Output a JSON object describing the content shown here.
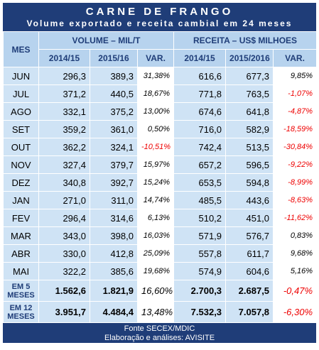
{
  "header": {
    "title": "CARNE DE FRANGO",
    "subtitle": "Volume exportado e receita cambial em 24 meses"
  },
  "table": {
    "month_header": "MES",
    "group_headers": [
      "VOLUME – MIL/T",
      "RECEITA – US$ MILHOES"
    ],
    "column_headers": [
      "2014/15",
      "2015/16",
      "VAR.",
      "2014/15",
      "2015/2016",
      "VAR."
    ],
    "rows": [
      [
        "JUN",
        "296,3",
        "389,3",
        "31,38%",
        "616,6",
        "677,3",
        "9,85%"
      ],
      [
        "JUL",
        "371,2",
        "440,5",
        "18,67%",
        "771,8",
        "763,5",
        "-1,07%"
      ],
      [
        "AGO",
        "332,1",
        "375,2",
        "13,00%",
        "674,6",
        "641,8",
        "-4,87%"
      ],
      [
        "SET",
        "359,2",
        "361,0",
        "0,50%",
        "716,0",
        "582,9",
        "-18,59%"
      ],
      [
        "OUT",
        "362,2",
        "324,1",
        "-10,51%",
        "742,4",
        "513,5",
        "-30,84%"
      ],
      [
        "NOV",
        "327,4",
        "379,7",
        "15,97%",
        "657,2",
        "596,5",
        "-9,22%"
      ],
      [
        "DEZ",
        "340,8",
        "392,7",
        "15,24%",
        "653,5",
        "594,8",
        "-8,99%"
      ],
      [
        "JAN",
        "271,0",
        "311,0",
        "14,74%",
        "485,5",
        "443,6",
        "-8,63%"
      ],
      [
        "FEV",
        "296,4",
        "314,6",
        "6,13%",
        "510,2",
        "451,0",
        "-11,62%"
      ],
      [
        "MAR",
        "343,0",
        "398,0",
        "16,03%",
        "571,9",
        "576,7",
        "0,83%"
      ],
      [
        "ABR",
        "330,0",
        "412,8",
        "25,09%",
        "557,8",
        "611,7",
        "9,68%"
      ],
      [
        "MAI",
        "322,2",
        "385,6",
        "19,68%",
        "574,9",
        "604,6",
        "5,16%"
      ]
    ],
    "totals": [
      [
        "EM 5 MESES",
        "1.562,6",
        "1.821,9",
        "16,60%",
        "2.700,3",
        "2.687,5",
        "-0,47%"
      ],
      [
        "EM 12 MESES",
        "3.951,7",
        "4.484,4",
        "13,48%",
        "7.532,3",
        "7.057,8",
        "-6,30%"
      ]
    ]
  },
  "footer": {
    "source": "Fonte SECEX/MDIC",
    "credit": "Elaboração e análises: AVISITE"
  }
}
